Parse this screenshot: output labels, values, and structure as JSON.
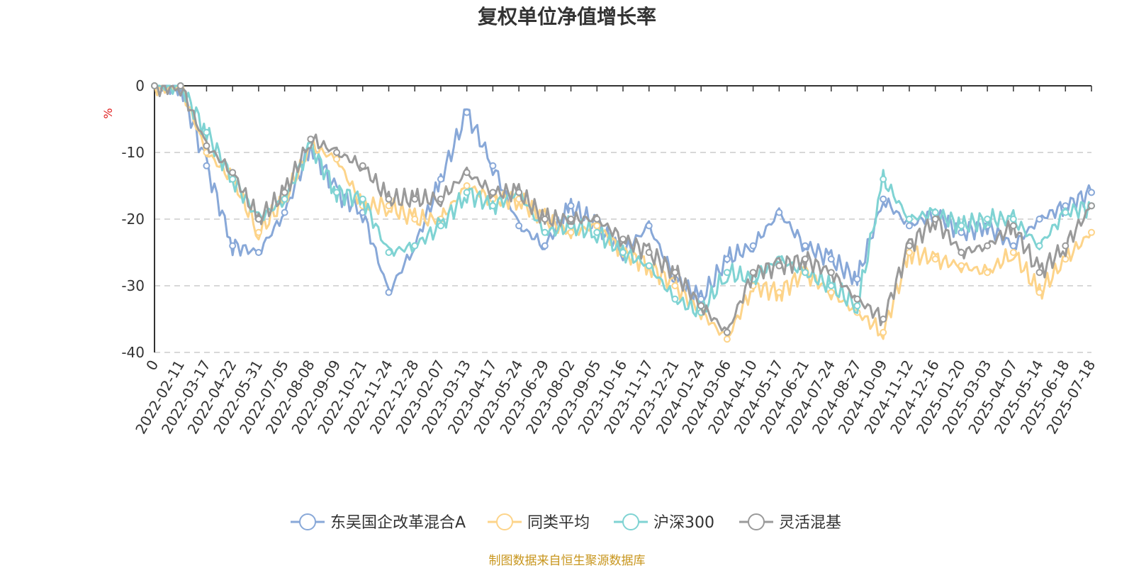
{
  "chart_data": {
    "type": "line",
    "title": "复权单位净值增长率",
    "ylabel": "%",
    "ylim": [
      -40,
      0
    ],
    "yticks": [
      0,
      -10,
      -20,
      -30,
      -40
    ],
    "grid": true,
    "legend_position": "bottom",
    "x_first_tick": "0",
    "x": [
      "2022-02-11",
      "2022-03-17",
      "2022-04-22",
      "2022-05-31",
      "2022-07-05",
      "2022-08-08",
      "2022-09-09",
      "2022-10-21",
      "2022-11-24",
      "2022-12-28",
      "2023-02-07",
      "2023-03-13",
      "2023-04-17",
      "2023-05-24",
      "2023-06-29",
      "2023-08-02",
      "2023-09-05",
      "2023-10-16",
      "2023-11-17",
      "2023-12-21",
      "2024-01-24",
      "2024-03-06",
      "2024-04-10",
      "2024-05-17",
      "2024-06-21",
      "2024-07-24",
      "2024-08-27",
      "2024-10-09",
      "2024-11-12",
      "2024-12-16",
      "2025-01-20",
      "2025-03-03",
      "2025-04-07",
      "2025-05-14",
      "2025-06-18",
      "2025-07-18"
    ],
    "series": [
      {
        "name": "东吴国企改革混合A",
        "color": "#88a8d8",
        "values": [
          0,
          -12,
          -24,
          -25,
          -19,
          -9,
          -16,
          -19,
          -31,
          -24,
          -14,
          -4,
          -12,
          -21,
          -24,
          -18,
          -21,
          -25,
          -21,
          -29,
          -32,
          -26,
          -24,
          -19,
          -24,
          -26,
          -29,
          -17,
          -21,
          -19,
          -22,
          -21,
          -24,
          -20,
          -18,
          -16
        ]
      },
      {
        "name": "同类平均",
        "color": "#fdd48a",
        "values": [
          0,
          -10,
          -14,
          -22,
          -17,
          -9,
          -11,
          -18,
          -18,
          -20,
          -20,
          -15,
          -17,
          -17,
          -20,
          -22,
          -21,
          -25,
          -27,
          -30,
          -34,
          -38,
          -30,
          -31,
          -28,
          -31,
          -34,
          -37,
          -25,
          -26,
          -27,
          -28,
          -25,
          -31,
          -26,
          -22
        ]
      },
      {
        "name": "沪深300",
        "color": "#7fd3d3",
        "values": [
          0,
          -7,
          -14,
          -20,
          -17,
          -9,
          -16,
          -17,
          -25,
          -24,
          -21,
          -16,
          -18,
          -16,
          -22,
          -21,
          -22,
          -25,
          -27,
          -32,
          -34,
          -28,
          -29,
          -26,
          -28,
          -30,
          -33,
          -14,
          -20,
          -19,
          -21,
          -20,
          -20,
          -24,
          -19,
          -18
        ]
      },
      {
        "name": "灵活混基",
        "color": "#9a9a9a",
        "values": [
          0,
          -9,
          -13,
          -20,
          -16,
          -8,
          -10,
          -12,
          -17,
          -17,
          -17,
          -13,
          -16,
          -16,
          -20,
          -20,
          -20,
          -23,
          -25,
          -28,
          -33,
          -37,
          -28,
          -27,
          -26,
          -28,
          -32,
          -35,
          -24,
          -20,
          -25,
          -24,
          -21,
          -28,
          -24,
          -18
        ]
      }
    ]
  },
  "source_note": "制图数据来自恒生聚源数据库"
}
